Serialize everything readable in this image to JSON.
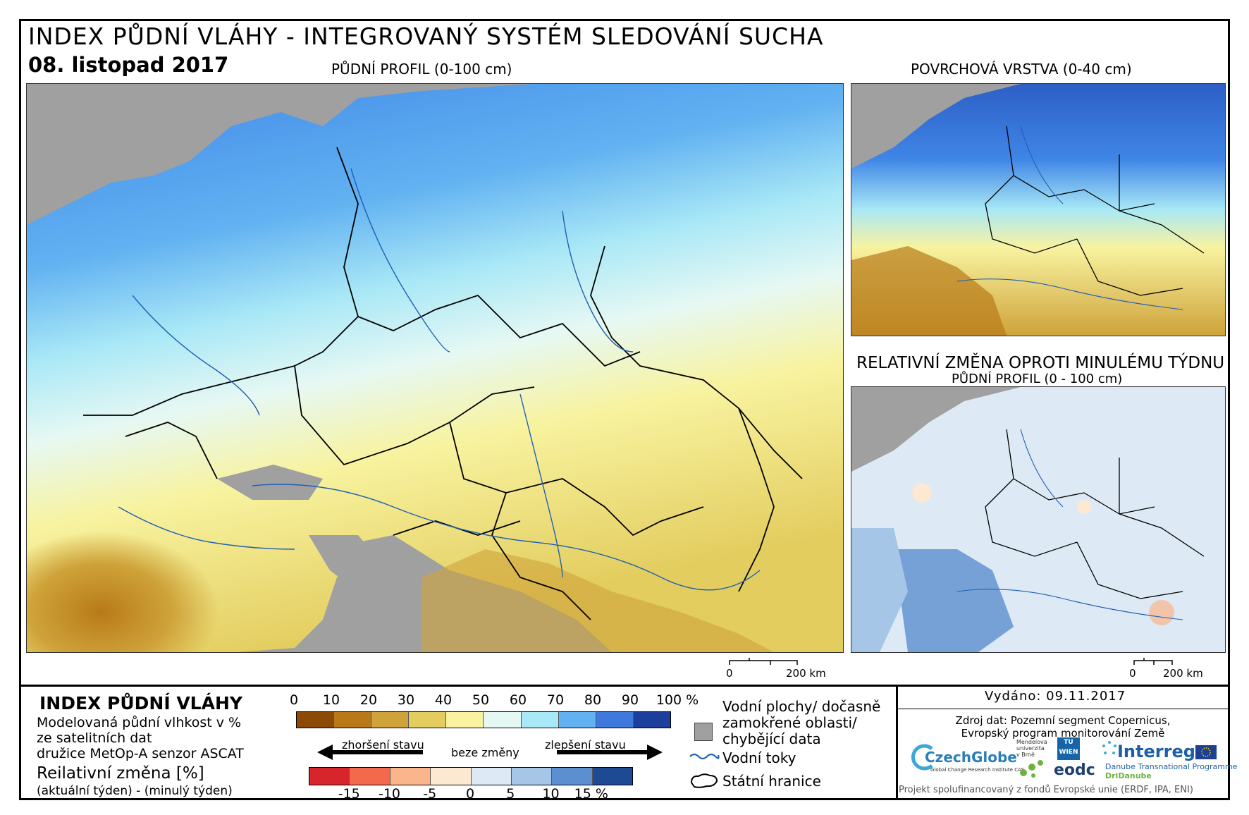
{
  "header": {
    "title": "INDEX PŮDNÍ VLÁHY - INTEGROVANÝ SYSTÉM SLEDOVÁNÍ SUCHA",
    "date": "08. listopad 2017"
  },
  "panels": {
    "main": {
      "title": "PŮDNÍ PROFIL (0-100 cm)",
      "scale_zero": "0",
      "scale_km": "200 km"
    },
    "surface": {
      "title": "POVRCHOVÁ VRSTVA (0-40 cm)"
    },
    "change": {
      "title": "RELATIVNÍ ZMĚNA OPROTI MINULÉMU TÝDNU",
      "subtitle": "PŮDNÍ PROFIL (0 - 100 cm)",
      "scale_zero": "0",
      "scale_km": "200 km"
    }
  },
  "legend": {
    "index_title": "INDEX PŮDNÍ VLÁHY",
    "index_lines": [
      "Modelovaná půdní vlhkost v %",
      "ze satelitních dat",
      "družice MetOp-A senzor ASCAT"
    ],
    "change_title": "Reilativní změna [%]",
    "change_line": "(aktuální týden) - (minulý týden)",
    "index_ticks": [
      "0",
      "10",
      "20",
      "30",
      "40",
      "50",
      "60",
      "70",
      "80",
      "90",
      "100 %"
    ],
    "index_colors": [
      "#8b4a06",
      "#b87a18",
      "#cfa33a",
      "#e3cd5f",
      "#f8f3a0",
      "#e6f8f4",
      "#a9e8f6",
      "#62b2f2",
      "#3f79db",
      "#1b3f9a"
    ],
    "arrow_worse": "zhoršení stavu",
    "arrow_none": "beze změny",
    "arrow_better": "zlepšení stavu",
    "change_ticks": [
      "-15",
      "-10",
      "-5",
      "0",
      "5",
      "10",
      "15 %"
    ],
    "change_colors": [
      "#d6262b",
      "#f26a4b",
      "#fbb58a",
      "#fde8d2",
      "#dde9f4",
      "#a6c6e8",
      "#5b8fd0",
      "#1d4a92"
    ],
    "water_label": "Vodní plochy/ dočasně",
    "water_label2": "zamokřené oblasti/",
    "water_label3": "chybějící data",
    "rivers_label": "Vodní toky",
    "borders_label": "Státní hranice"
  },
  "credits": {
    "issued": "Vydáno: 09.11.2017",
    "source1": "Zdroj dat: Pozemní segment Copernicus,",
    "source2": "Evropský program monitorování Země",
    "czechglobe": "CzechGlobe",
    "czechglobe_sub": "Global Change Research Institute CAS",
    "mendel": "Mendelova univerzita v Brně",
    "tuwien": "TU WIEN",
    "eodc": "eodc",
    "interreg": "Interreg",
    "interreg_sub": "Danube Transnational Programme",
    "dridanube": "DriDanube",
    "footer": "Projekt spolufinancovaný z fondů Evropské unie (ERDF, IPA, ENI)"
  }
}
